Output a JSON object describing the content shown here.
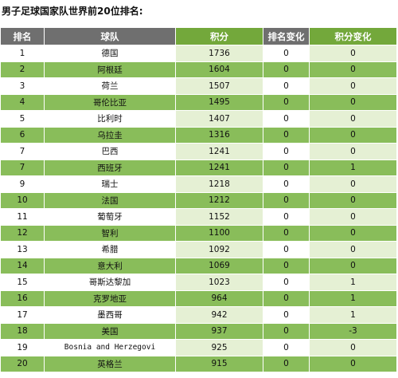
{
  "title": "男子足球国家队世界前20位排名:",
  "table": {
    "headers": {
      "rank": "排名",
      "team": "球队",
      "points": "积分",
      "rank_change": "排名变化",
      "points_change": "积分变化"
    },
    "rows": [
      {
        "rank": "1",
        "team": "德国",
        "points": "1736",
        "rank_change": "0",
        "points_change": "0"
      },
      {
        "rank": "2",
        "team": "阿根廷",
        "points": "1604",
        "rank_change": "0",
        "points_change": "0"
      },
      {
        "rank": "3",
        "team": "荷兰",
        "points": "1507",
        "rank_change": "0",
        "points_change": "0"
      },
      {
        "rank": "4",
        "team": "哥伦比亚",
        "points": "1495",
        "rank_change": "0",
        "points_change": "0"
      },
      {
        "rank": "5",
        "team": "比利时",
        "points": "1407",
        "rank_change": "0",
        "points_change": "0"
      },
      {
        "rank": "6",
        "team": "乌拉圭",
        "points": "1316",
        "rank_change": "0",
        "points_change": "0"
      },
      {
        "rank": "7",
        "team": "巴西",
        "points": "1241",
        "rank_change": "0",
        "points_change": "0"
      },
      {
        "rank": "7",
        "team": "西班牙",
        "points": "1241",
        "rank_change": "0",
        "points_change": "1"
      },
      {
        "rank": "9",
        "team": "瑞士",
        "points": "1218",
        "rank_change": "0",
        "points_change": "0"
      },
      {
        "rank": "10",
        "team": "法国",
        "points": "1212",
        "rank_change": "0",
        "points_change": "0"
      },
      {
        "rank": "11",
        "team": "葡萄牙",
        "points": "1152",
        "rank_change": "0",
        "points_change": "0"
      },
      {
        "rank": "12",
        "team": "智利",
        "points": "1100",
        "rank_change": "0",
        "points_change": "0"
      },
      {
        "rank": "13",
        "team": "希腊",
        "points": "1092",
        "rank_change": "0",
        "points_change": "0"
      },
      {
        "rank": "14",
        "team": "意大利",
        "points": "1069",
        "rank_change": "0",
        "points_change": "0"
      },
      {
        "rank": "15",
        "team": "哥斯达黎加",
        "points": "1023",
        "rank_change": "0",
        "points_change": "1"
      },
      {
        "rank": "16",
        "team": "克罗地亚",
        "points": "964",
        "rank_change": "0",
        "points_change": "1"
      },
      {
        "rank": "17",
        "team": "墨西哥",
        "points": "942",
        "rank_change": "0",
        "points_change": "1"
      },
      {
        "rank": "18",
        "team": "美国",
        "points": "937",
        "rank_change": "0",
        "points_change": "-3"
      },
      {
        "rank": "19",
        "team": "Bosnia and Herzegovi",
        "points": "925",
        "rank_change": "0",
        "points_change": "0"
      },
      {
        "rank": "20",
        "team": "英格兰",
        "points": "915",
        "rank_change": "0",
        "points_change": "0"
      }
    ]
  }
}
